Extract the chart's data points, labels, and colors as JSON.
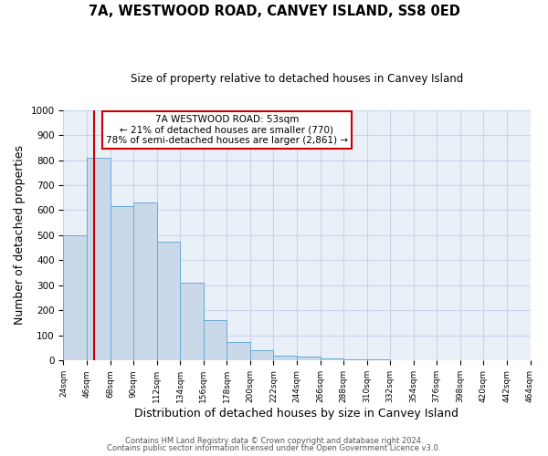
{
  "title": "7A, WESTWOOD ROAD, CANVEY ISLAND, SS8 0ED",
  "subtitle": "Size of property relative to detached houses in Canvey Island",
  "xlabel": "Distribution of detached houses by size in Canvey Island",
  "ylabel": "Number of detached properties",
  "bin_edges": [
    24,
    46,
    68,
    90,
    112,
    134,
    156,
    178,
    200,
    222,
    244,
    266,
    288,
    310,
    332,
    354,
    376,
    398,
    420,
    442,
    464
  ],
  "counts": [
    500,
    808,
    615,
    632,
    475,
    310,
    160,
    75,
    40,
    20,
    15,
    10,
    5,
    5,
    3,
    3,
    0,
    0,
    0,
    0
  ],
  "bar_color": "#c9d9ea",
  "bar_edge_color": "#6aaad4",
  "red_line_x": 53,
  "annotation_title": "7A WESTWOOD ROAD: 53sqm",
  "annotation_line1": "← 21% of detached houses are smaller (770)",
  "annotation_line2": "78% of semi-detached houses are larger (2,861) →",
  "annotation_box_color": "#ffffff",
  "annotation_box_edge_color": "#cc0000",
  "red_line_color": "#cc0000",
  "ylim": [
    0,
    1000
  ],
  "tick_labels": [
    "24sqm",
    "46sqm",
    "68sqm",
    "90sqm",
    "112sqm",
    "134sqm",
    "156sqm",
    "178sqm",
    "200sqm",
    "222sqm",
    "244sqm",
    "266sqm",
    "288sqm",
    "310sqm",
    "332sqm",
    "354sqm",
    "376sqm",
    "398sqm",
    "420sqm",
    "442sqm",
    "464sqm"
  ],
  "grid_color": "#c8d4e8",
  "background_color": "#eaf0f8",
  "footer1": "Contains HM Land Registry data © Crown copyright and database right 2024.",
  "footer2": "Contains public sector information licensed under the Open Government Licence v3.0."
}
